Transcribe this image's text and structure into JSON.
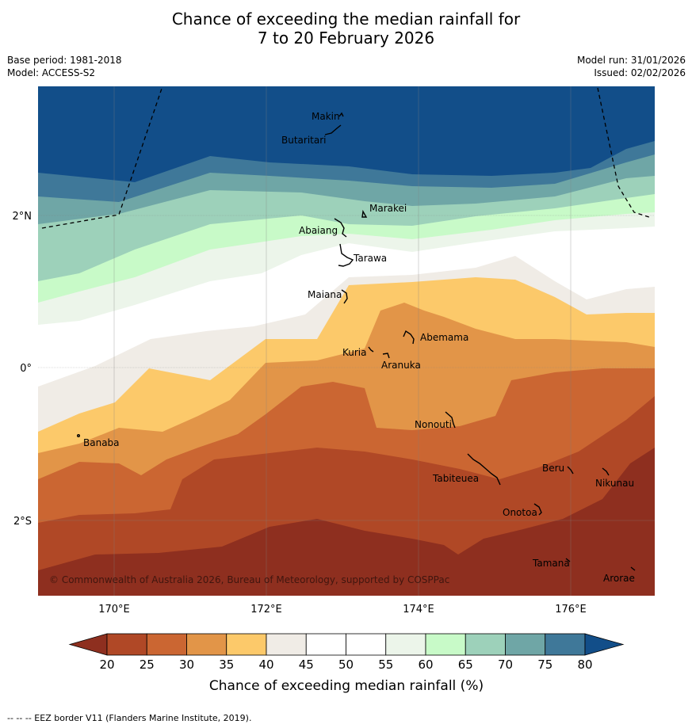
{
  "title": {
    "line1": "Chance of exceeding the median rainfall for",
    "line2": "7 to 20 February 2026"
  },
  "meta": {
    "base_period": "Base period: 1981-2018",
    "model": "Model: ACCESS-S2",
    "model_run": "Model run: 31/01/2026",
    "issued": "Issued: 02/02/2026"
  },
  "map": {
    "lon_ticks": [
      "170°E",
      "172°E",
      "174°E",
      "176°E"
    ],
    "lat_ticks": [
      "2°N",
      "0°",
      "2°S"
    ],
    "places": [
      "Makin",
      "Butaritari",
      "Marakei",
      "Abaiang",
      "Tarawa",
      "Maiana",
      "Abemama",
      "Kuria",
      "Aranuka",
      "Nonouti",
      "Banaba",
      "Tabiteuea",
      "Beru",
      "Nikunau",
      "Onotoa",
      "Tamana",
      "Arorae"
    ],
    "copyright": "© Commonwealth of Australia 2026, Bureau of Meteorology, supported by COSPPac"
  },
  "legend": {
    "colors": [
      "#8e2f1f",
      "#b04826",
      "#cb6632",
      "#e29548",
      "#fcc96a",
      "#f0ece6",
      "#ffffff",
      "#ffffff",
      "#ecf5ea",
      "#c8fac8",
      "#9dd1ba",
      "#6fa6a6",
      "#3f7899",
      "#124e89"
    ],
    "ticks": [
      "20",
      "25",
      "30",
      "35",
      "40",
      "45",
      "50",
      "55",
      "60",
      "65",
      "70",
      "75",
      "80"
    ],
    "label": "Chance of exceeding median rainfall (%)"
  },
  "footer": "--  --  -- EEZ border V11 (Flanders Marine Institute, 2019)."
}
